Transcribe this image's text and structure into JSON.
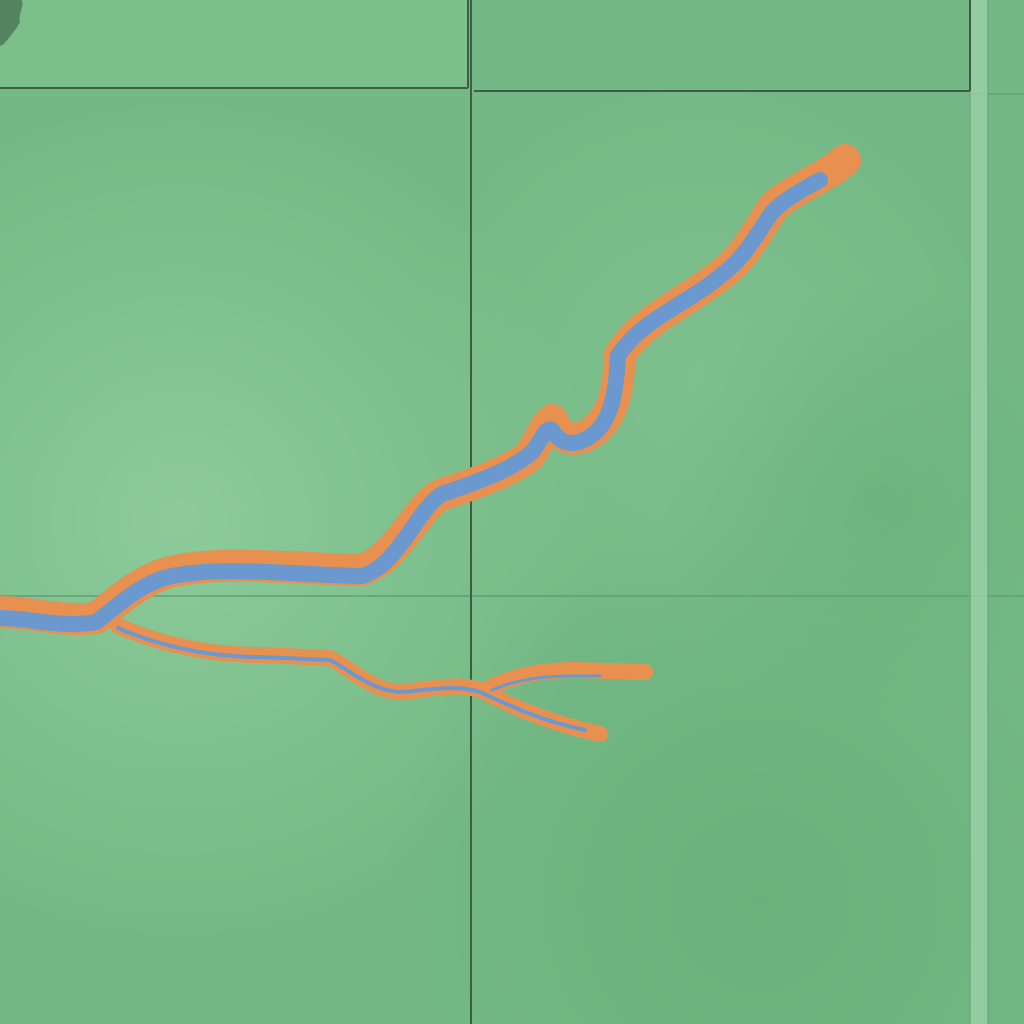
{
  "map": {
    "view": "terrain",
    "layers": [
      "terrain-shading",
      "grid-lines",
      "boundary-lines",
      "river-casing",
      "river-water"
    ],
    "colors": {
      "land": "#74b985",
      "land_light": "#8ccb99",
      "land_dark": "#69b27c",
      "grid_line": "#5f9e6f",
      "boundary_line": "#3d5d45",
      "river_casing": "#e8904f",
      "river_water": "#6b98cf",
      "margin_strip": "#9fd3ab",
      "vegetation": "#4d7a58"
    },
    "features": [
      {
        "kind": "river",
        "name": "",
        "icon": "river-icon"
      },
      {
        "kind": "river-branch",
        "name": "",
        "icon": "river-icon"
      },
      {
        "kind": "vegetation-patch",
        "name": "",
        "icon": "forest-icon"
      }
    ]
  }
}
